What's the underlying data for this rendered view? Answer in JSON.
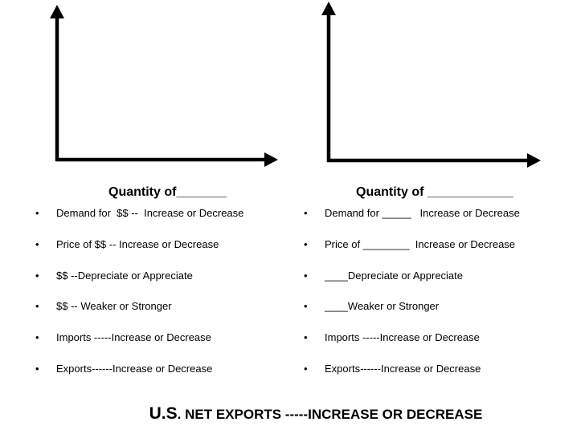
{
  "graphs": {
    "left": {
      "axis_label": "Quantity of_______"
    },
    "right": {
      "axis_label": "Quantity of ____________"
    }
  },
  "lists": {
    "bullet": "•",
    "left": [
      "Demand for  $$ --  Increase or Decrease",
      "Price of $$ -- Increase or Decrease",
      "$$ --Depreciate or Appreciate",
      "$$ -- Weaker or Stronger",
      "Imports -----Increase or Decrease",
      "Exports------Increase or Decrease"
    ],
    "right": [
      "Demand for _____   Increase or Decrease",
      "Price of ________  Increase or Decrease",
      "____Depreciate or Appreciate",
      "____Weaker or Stronger",
      "Imports -----Increase or Decrease",
      "Exports------Increase or Decrease"
    ]
  },
  "footer": {
    "prefix": "U.S",
    "suffix": ". NET EXPORTS -----INCREASE OR DECREASE"
  }
}
